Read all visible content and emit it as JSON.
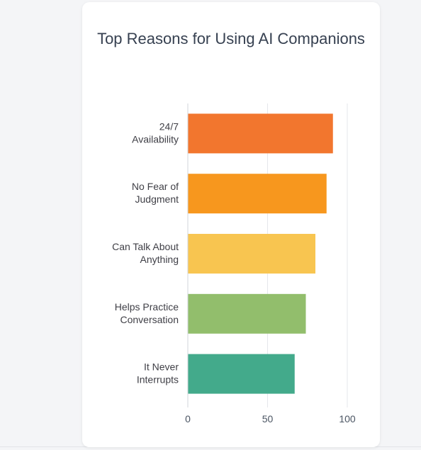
{
  "chart_data": {
    "type": "bar",
    "orientation": "horizontal",
    "title": "Top Reasons for Using AI Companions",
    "categories": [
      [
        "24/7",
        "Availability"
      ],
      [
        "No Fear of",
        "Judgment"
      ],
      [
        "Can Talk About",
        "Anything"
      ],
      [
        "Helps Practice",
        "Conversation"
      ],
      [
        "It Never",
        "Interrupts"
      ]
    ],
    "values": [
      91,
      87,
      80,
      74,
      67
    ],
    "colors": [
      "#f2762e",
      "#f7971e",
      "#f8c550",
      "#92be6c",
      "#43aa8b"
    ],
    "xlim": [
      0,
      100
    ],
    "xticks": [
      0,
      50,
      100
    ],
    "grid": true,
    "xlabel": "",
    "ylabel": ""
  }
}
